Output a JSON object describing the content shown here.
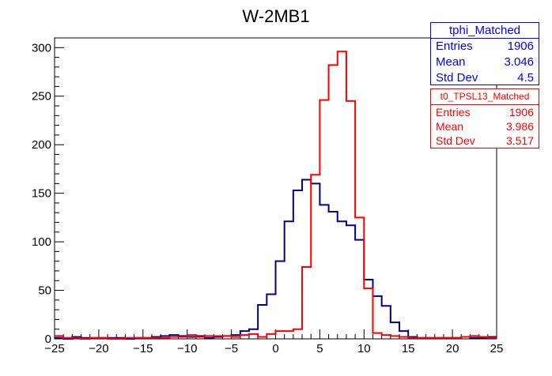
{
  "chart_data": {
    "type": "histogram",
    "title": "W-2MB1",
    "xlim": [
      -25,
      25
    ],
    "ylim": [
      0,
      310
    ],
    "x_tick_labels": [
      "−25",
      "−20",
      "−15",
      "−10",
      "−5",
      "0",
      "5",
      "10",
      "15",
      "20",
      "25"
    ],
    "y_tick_labels": [
      "0",
      "50",
      "100",
      "150",
      "200",
      "250",
      "300"
    ],
    "bin_edges_start": -25,
    "bin_width": 1,
    "series": [
      {
        "name": "tphi_Matched",
        "color": "#00008b",
        "values": [
          1,
          0,
          2,
          1,
          1,
          1,
          1,
          1,
          0,
          1,
          1,
          2,
          3,
          4,
          3,
          2,
          3,
          1,
          2,
          3,
          4,
          8,
          10,
          35,
          46,
          80,
          121,
          153,
          164,
          160,
          138,
          131,
          121,
          117,
          102,
          61,
          44,
          34,
          17,
          8,
          2,
          1,
          1,
          1,
          1,
          1,
          2,
          1,
          1,
          2
        ]
      },
      {
        "name": "t0_TPSL13_Matched",
        "color": "#ff0000",
        "values": [
          3,
          1,
          1,
          0,
          1,
          1,
          0,
          0,
          1,
          1,
          1,
          1,
          1,
          2,
          2,
          4,
          2,
          3,
          3,
          3,
          2,
          4,
          5,
          2,
          5,
          8,
          8,
          10,
          74,
          169,
          246,
          282,
          296,
          245,
          125,
          52,
          6,
          4,
          3,
          2,
          1,
          1,
          1,
          1,
          1,
          1,
          2,
          3,
          2,
          1
        ]
      }
    ],
    "stats_boxes": [
      {
        "name": "tphi_Matched",
        "color": "#0000ff",
        "entries": "1906",
        "mean": "3.046",
        "std_dev": "4.5"
      },
      {
        "name": "t0_TPSL13_Matched",
        "color": "#ff0000",
        "entries": "1906",
        "mean": "3.986",
        "std_dev": "3.517"
      }
    ],
    "stat_labels": {
      "entries": "Entries",
      "mean": "Mean",
      "std_dev": "Std Dev"
    }
  }
}
